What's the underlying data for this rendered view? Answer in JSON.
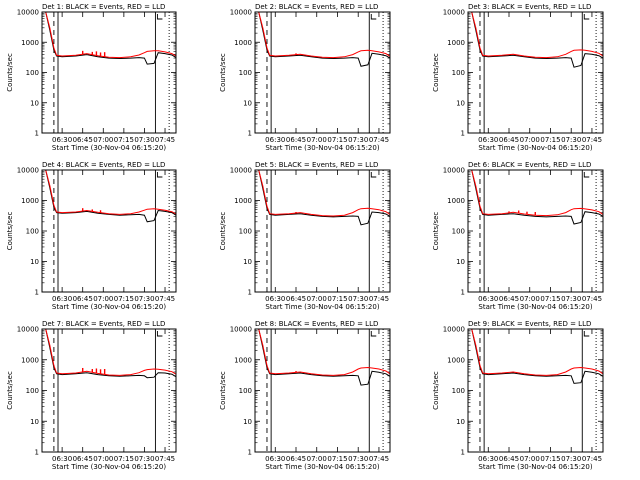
{
  "figure": {
    "background": "#ffffff",
    "ink": "#000000",
    "red": "#ff0000"
  },
  "chart_common": {
    "type": "line",
    "y_scale": "log",
    "ylim": [
      1,
      10000
    ],
    "y_ticks": [
      1,
      10,
      100,
      1000,
      10000
    ],
    "y_tick_labels": [
      "1",
      "10",
      "100",
      "1000",
      "10000"
    ],
    "ylabel": "Counts/sec",
    "xlabel": "Start Time (30-Nov-04 06:15:20)",
    "x_tick_labels": [
      "06:30",
      "06:45",
      "07:00",
      "07:15",
      "07:30",
      "07:45"
    ],
    "xlim": [
      "06:15:20",
      "07:53"
    ],
    "vertical_markers": [
      {
        "time": "06:24",
        "style": "dashed"
      },
      {
        "time": "06:27",
        "style": "solid"
      },
      {
        "time": "07:38",
        "style": "solid"
      },
      {
        "time": "07:48",
        "style": "dotted"
      }
    ],
    "series": [
      {
        "name": "Events",
        "color": "#000000"
      },
      {
        "name": "LLD",
        "color": "#ff0000"
      }
    ]
  },
  "chart_data": [
    {
      "type": "line",
      "title": "Det 1: BLACK = Events, RED = LLD",
      "x": [
        "06:15:20",
        "06:18",
        "06:21",
        "06:24",
        "06:26",
        "06:30",
        "06:40",
        "06:48",
        "06:56",
        "07:04",
        "07:12",
        "07:20",
        "07:26",
        "07:30",
        "07:32",
        "07:37",
        "07:40",
        "07:45",
        "07:50",
        "07:53"
      ],
      "series": [
        {
          "name": "Events",
          "values": [
            10000,
            10000,
            2500,
            550,
            350,
            330,
            350,
            390,
            330,
            300,
            290,
            300,
            310,
            300,
            190,
            200,
            450,
            420,
            380,
            310
          ]
        },
        {
          "name": "LLD",
          "values": [
            10000,
            10000,
            3000,
            650,
            370,
            350,
            370,
            420,
            360,
            320,
            310,
            330,
            380,
            450,
            500,
            520,
            520,
            480,
            420,
            350
          ]
        }
      ],
      "spikes_series": "LLD",
      "spikes": [
        [
          "06:45",
          520
        ],
        [
          "06:52",
          480
        ],
        [
          "06:55",
          500
        ],
        [
          "06:58",
          460
        ],
        [
          "07:01",
          470
        ]
      ]
    },
    {
      "type": "line",
      "title": "Det 2: BLACK = Events, RED = LLD",
      "x": [
        "06:15:20",
        "06:18",
        "06:21",
        "06:24",
        "06:26",
        "06:30",
        "06:40",
        "06:48",
        "06:56",
        "07:04",
        "07:12",
        "07:20",
        "07:26",
        "07:30",
        "07:32",
        "07:37",
        "07:40",
        "07:45",
        "07:50",
        "07:53"
      ],
      "series": [
        {
          "name": "Events",
          "values": [
            10000,
            10000,
            2500,
            550,
            350,
            330,
            350,
            370,
            330,
            300,
            290,
            300,
            310,
            300,
            160,
            180,
            430,
            400,
            360,
            300
          ]
        },
        {
          "name": "LLD",
          "values": [
            10000,
            10000,
            3000,
            650,
            370,
            350,
            370,
            400,
            350,
            320,
            310,
            330,
            390,
            480,
            520,
            540,
            520,
            480,
            420,
            340
          ]
        }
      ],
      "spikes_series": "LLD",
      "spikes": [
        [
          "06:45",
          430
        ]
      ]
    },
    {
      "type": "line",
      "title": "Det 3: BLACK = Events, RED = LLD",
      "x": [
        "06:15:20",
        "06:18",
        "06:21",
        "06:24",
        "06:26",
        "06:30",
        "06:40",
        "06:48",
        "06:56",
        "07:04",
        "07:12",
        "07:20",
        "07:26",
        "07:30",
        "07:32",
        "07:37",
        "07:40",
        "07:45",
        "07:50",
        "07:53"
      ],
      "series": [
        {
          "name": "Events",
          "values": [
            10000,
            10000,
            2500,
            550,
            350,
            330,
            350,
            370,
            330,
            300,
            290,
            300,
            310,
            300,
            150,
            170,
            420,
            400,
            360,
            300
          ]
        },
        {
          "name": "LLD",
          "values": [
            10000,
            10000,
            3000,
            650,
            370,
            350,
            370,
            400,
            350,
            320,
            310,
            330,
            400,
            500,
            540,
            560,
            540,
            500,
            430,
            350
          ]
        }
      ],
      "spikes_series": "LLD",
      "spikes": []
    },
    {
      "type": "line",
      "title": "Det 4: BLACK = Events, RED = LLD",
      "x": [
        "06:15:20",
        "06:18",
        "06:21",
        "06:24",
        "06:26",
        "06:30",
        "06:40",
        "06:48",
        "06:56",
        "07:04",
        "07:12",
        "07:20",
        "07:26",
        "07:30",
        "07:32",
        "07:37",
        "07:40",
        "07:45",
        "07:50",
        "07:53"
      ],
      "series": [
        {
          "name": "Events",
          "values": [
            10000,
            10000,
            2600,
            600,
            400,
            380,
            400,
            440,
            380,
            350,
            330,
            340,
            350,
            330,
            200,
            220,
            470,
            440,
            400,
            330
          ]
        },
        {
          "name": "LLD",
          "values": [
            10000,
            10000,
            3100,
            700,
            420,
            400,
            420,
            470,
            410,
            370,
            350,
            370,
            420,
            480,
            520,
            540,
            520,
            480,
            430,
            360
          ]
        }
      ],
      "spikes_series": "LLD",
      "spikes": [
        [
          "06:45",
          560
        ],
        [
          "06:52",
          510
        ],
        [
          "06:58",
          480
        ]
      ]
    },
    {
      "type": "line",
      "title": "Det 5: BLACK = Events, RED = LLD",
      "x": [
        "06:15:20",
        "06:18",
        "06:21",
        "06:24",
        "06:26",
        "06:30",
        "06:40",
        "06:48",
        "06:56",
        "07:04",
        "07:12",
        "07:20",
        "07:26",
        "07:30",
        "07:32",
        "07:37",
        "07:40",
        "07:45",
        "07:50",
        "07:53"
      ],
      "series": [
        {
          "name": "Events",
          "values": [
            10000,
            10000,
            2500,
            550,
            350,
            330,
            350,
            370,
            330,
            300,
            290,
            300,
            310,
            300,
            160,
            180,
            420,
            400,
            360,
            300
          ]
        },
        {
          "name": "LLD",
          "values": [
            10000,
            10000,
            3000,
            650,
            370,
            350,
            370,
            400,
            350,
            320,
            310,
            330,
            400,
            500,
            540,
            560,
            540,
            500,
            430,
            350
          ]
        }
      ],
      "spikes_series": "LLD",
      "spikes": [
        [
          "06:45",
          420
        ]
      ]
    },
    {
      "type": "line",
      "title": "Det 6: BLACK = Events, RED = LLD",
      "x": [
        "06:15:20",
        "06:18",
        "06:21",
        "06:24",
        "06:26",
        "06:30",
        "06:40",
        "06:48",
        "06:56",
        "07:04",
        "07:12",
        "07:20",
        "07:26",
        "07:30",
        "07:32",
        "07:37",
        "07:40",
        "07:45",
        "07:50",
        "07:53"
      ],
      "series": [
        {
          "name": "Events",
          "values": [
            10000,
            10000,
            2500,
            550,
            350,
            330,
            350,
            370,
            330,
            300,
            290,
            300,
            310,
            300,
            170,
            190,
            430,
            400,
            360,
            300
          ]
        },
        {
          "name": "LLD",
          "values": [
            10000,
            10000,
            3000,
            650,
            370,
            350,
            370,
            410,
            360,
            330,
            320,
            340,
            400,
            500,
            540,
            550,
            530,
            490,
            430,
            350
          ]
        }
      ],
      "spikes_series": "LLD",
      "spikes": [
        [
          "06:45",
          440
        ],
        [
          "06:52",
          470
        ],
        [
          "06:58",
          430
        ],
        [
          "07:04",
          420
        ]
      ]
    },
    {
      "type": "line",
      "title": "Det 7: BLACK = Events, RED = LLD",
      "x": [
        "06:15:20",
        "06:18",
        "06:21",
        "06:24",
        "06:26",
        "06:30",
        "06:40",
        "06:48",
        "06:56",
        "07:04",
        "07:12",
        "07:20",
        "07:26",
        "07:30",
        "07:32",
        "07:37",
        "07:40",
        "07:45",
        "07:50",
        "07:53"
      ],
      "series": [
        {
          "name": "Events",
          "values": [
            10000,
            10000,
            2500,
            550,
            350,
            330,
            350,
            380,
            330,
            300,
            290,
            300,
            310,
            300,
            260,
            270,
            380,
            370,
            340,
            280
          ]
        },
        {
          "name": "LLD",
          "values": [
            10000,
            10000,
            3000,
            650,
            370,
            350,
            370,
            420,
            360,
            320,
            310,
            330,
            380,
            450,
            480,
            500,
            490,
            460,
            410,
            340
          ]
        }
      ],
      "spikes_series": "LLD",
      "spikes": [
        [
          "06:45",
          540
        ],
        [
          "06:52",
          500
        ],
        [
          "06:55",
          520
        ],
        [
          "06:58",
          490
        ],
        [
          "07:01",
          500
        ]
      ]
    },
    {
      "type": "line",
      "title": "Det 8: BLACK = Events, RED = LLD",
      "x": [
        "06:15:20",
        "06:18",
        "06:21",
        "06:24",
        "06:26",
        "06:30",
        "06:40",
        "06:48",
        "06:56",
        "07:04",
        "07:12",
        "07:20",
        "07:26",
        "07:30",
        "07:32",
        "07:37",
        "07:40",
        "07:45",
        "07:50",
        "07:53"
      ],
      "series": [
        {
          "name": "Events",
          "values": [
            10000,
            10000,
            2500,
            550,
            350,
            330,
            350,
            370,
            330,
            300,
            290,
            300,
            310,
            300,
            150,
            160,
            420,
            390,
            350,
            290
          ]
        },
        {
          "name": "LLD",
          "values": [
            10000,
            10000,
            3000,
            650,
            370,
            350,
            370,
            400,
            350,
            320,
            310,
            330,
            400,
            500,
            540,
            560,
            540,
            500,
            430,
            350
          ]
        }
      ],
      "spikes_series": "LLD",
      "spikes": [
        [
          "06:45",
          430
        ]
      ]
    },
    {
      "type": "line",
      "title": "Det 9: BLACK = Events, RED = LLD",
      "x": [
        "06:15:20",
        "06:18",
        "06:21",
        "06:24",
        "06:26",
        "06:30",
        "06:40",
        "06:48",
        "06:56",
        "07:04",
        "07:12",
        "07:20",
        "07:26",
        "07:30",
        "07:32",
        "07:37",
        "07:40",
        "07:45",
        "07:50",
        "07:53"
      ],
      "series": [
        {
          "name": "Events",
          "values": [
            10000,
            10000,
            2500,
            550,
            350,
            330,
            350,
            370,
            330,
            300,
            290,
            300,
            310,
            300,
            170,
            180,
            420,
            390,
            350,
            290
          ]
        },
        {
          "name": "LLD",
          "values": [
            10000,
            10000,
            3000,
            650,
            370,
            350,
            370,
            400,
            350,
            320,
            310,
            330,
            400,
            500,
            540,
            560,
            540,
            500,
            430,
            350
          ]
        }
      ],
      "spikes_series": "LLD",
      "spikes": []
    }
  ]
}
